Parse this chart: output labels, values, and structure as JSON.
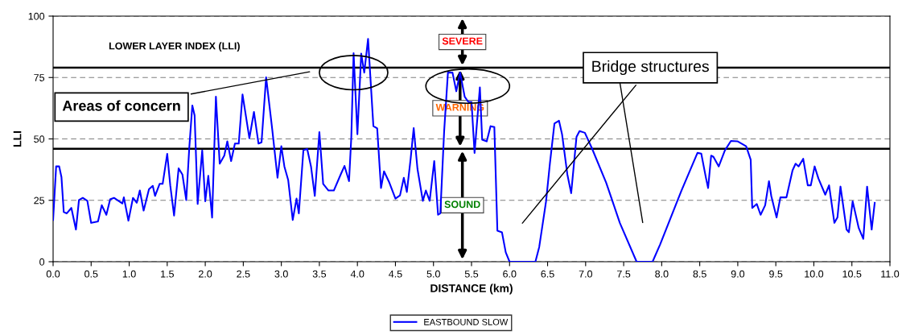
{
  "chart_data": {
    "type": "line",
    "xlabel": "DISTANCE (km)",
    "ylabel": "LLI",
    "xlim": [
      0,
      11
    ],
    "xticks": [
      {
        "value": 0,
        "label": "0.0"
      },
      {
        "value": 0.5,
        "label": "0.5"
      },
      {
        "value": 1,
        "label": "1.0"
      },
      {
        "value": 1.5,
        "label": "1.5"
      },
      {
        "value": 2,
        "label": "2.0"
      },
      {
        "value": 2.5,
        "label": "2.5"
      },
      {
        "value": 3,
        "label": "3.0"
      },
      {
        "value": 3.5,
        "label": "3.5"
      },
      {
        "value": 4,
        "label": "4.0"
      },
      {
        "value": 4.5,
        "label": "4.5"
      },
      {
        "value": 5,
        "label": "5.0"
      },
      {
        "value": 5.5,
        "label": "5.5"
      },
      {
        "value": 6,
        "label": "6.0"
      },
      {
        "value": 6.5,
        "label": "6.5"
      },
      {
        "value": 7,
        "label": "7.0"
      },
      {
        "value": 7.5,
        "label": "7.5"
      },
      {
        "value": 8,
        "label": "8.0"
      },
      {
        "value": 8.5,
        "label": "8.5"
      },
      {
        "value": 9,
        "label": "9.0"
      },
      {
        "value": 9.5,
        "label": "9.5"
      },
      {
        "value": 10,
        "label": "10.0"
      },
      {
        "value": 10.5,
        "label": "10.5"
      },
      {
        "value": 11,
        "label": "11.0"
      }
    ],
    "ylim": [
      0,
      100
    ],
    "yticks": [
      0,
      25,
      50,
      75,
      100
    ],
    "grid": "y",
    "legend": "bottom",
    "line_style": "solid",
    "marker": "none",
    "series": [
      {
        "name": "EASTBOUND SLOW",
        "color": "#0000ff",
        "x": [
          0.0,
          0.04,
          0.08,
          0.11,
          0.14,
          0.18,
          0.24,
          0.3,
          0.34,
          0.39,
          0.45,
          0.5,
          0.59,
          0.64,
          0.7,
          0.75,
          0.8,
          0.91,
          0.93,
          0.99,
          1.05,
          1.1,
          1.14,
          1.19,
          1.26,
          1.31,
          1.34,
          1.4,
          1.44,
          1.5,
          1.54,
          1.59,
          1.65,
          1.7,
          1.75,
          1.79,
          1.83,
          1.86,
          1.9,
          1.96,
          2.0,
          2.04,
          2.09,
          2.14,
          2.19,
          2.25,
          2.29,
          2.34,
          2.39,
          2.44,
          2.49,
          2.58,
          2.64,
          2.7,
          2.74,
          2.8,
          2.88,
          2.95,
          3.0,
          3.04,
          3.09,
          3.15,
          3.2,
          3.23,
          3.29,
          3.34,
          3.39,
          3.44,
          3.5,
          3.55,
          3.62,
          3.69,
          3.78,
          3.83,
          3.89,
          3.92,
          3.95,
          4.0,
          4.05,
          4.09,
          4.14,
          4.21,
          4.26,
          4.31,
          4.35,
          4.42,
          4.5,
          4.56,
          4.61,
          4.65,
          4.7,
          4.74,
          4.79,
          4.86,
          4.9,
          4.95,
          5.01,
          5.06,
          5.09,
          5.14,
          5.19,
          5.25,
          5.3,
          5.35,
          5.41,
          5.46,
          5.5,
          5.54,
          5.61,
          5.64,
          5.7,
          5.75,
          5.8,
          5.84,
          5.9,
          5.95,
          6.0,
          6.34,
          6.39,
          6.48,
          6.53,
          6.59,
          6.65,
          6.69,
          6.76,
          6.81,
          6.85,
          6.88,
          6.92,
          6.99,
          7.08,
          7.27,
          7.45,
          7.67,
          7.88,
          7.98,
          8.26,
          8.47,
          8.52,
          8.58,
          8.61,
          8.65,
          8.68,
          8.75,
          8.83,
          8.91,
          9.0,
          9.11,
          9.17,
          9.19,
          9.25,
          9.3,
          9.36,
          9.41,
          9.44,
          9.51,
          9.56,
          9.64,
          9.72,
          9.76,
          9.8,
          9.86,
          9.92,
          9.96,
          10.01,
          10.06,
          10.15,
          10.2,
          10.27,
          10.31,
          10.35,
          10.43,
          10.46,
          10.51,
          10.59,
          10.65,
          10.7,
          10.76,
          10.8
        ],
        "values": [
          17,
          38.8,
          38.8,
          34.4,
          20.2,
          19.7,
          21.9,
          13.1,
          25.1,
          26,
          24.8,
          15.8,
          16.4,
          23,
          19.1,
          25.4,
          26,
          23.7,
          26.2,
          16.7,
          26,
          24,
          29,
          20.8,
          29.5,
          30.9,
          26.8,
          31.7,
          31.7,
          43.9,
          31.1,
          18.8,
          38,
          35.5,
          25.1,
          46.4,
          63.6,
          59.6,
          23.5,
          45.3,
          24.6,
          35,
          18,
          67.2,
          39.9,
          43.2,
          49,
          41,
          48.1,
          48.1,
          68.1,
          50.3,
          61,
          48.1,
          48.6,
          75.1,
          54,
          34.2,
          47,
          38.8,
          33.3,
          17,
          25.7,
          19.7,
          45.4,
          45.9,
          38.8,
          26.8,
          52.8,
          31.7,
          29,
          29,
          35.5,
          39,
          32.8,
          50.8,
          84.9,
          51.9,
          84.7,
          77,
          90.7,
          55.2,
          54.3,
          30,
          36.8,
          32.2,
          25.7,
          27,
          34.2,
          28.4,
          42,
          54.4,
          37.7,
          24.8,
          29,
          24.8,
          41,
          19.1,
          19.7,
          53,
          77,
          77,
          69.4,
          77,
          67.2,
          65,
          65,
          44.3,
          71,
          49.7,
          49,
          55.2,
          54.8,
          12.6,
          12,
          3.8,
          0,
          0,
          6,
          24.6,
          39.9,
          56.3,
          57.4,
          51.9,
          35.5,
          27.9,
          41,
          50.8,
          53.2,
          52.5,
          46.4,
          32.2,
          15.8,
          0,
          0,
          7.1,
          29,
          44.3,
          44,
          34.4,
          30,
          43.2,
          42.7,
          38.8,
          45.3,
          49.2,
          49,
          47,
          41.5,
          21.9,
          23.5,
          19.1,
          23,
          32.8,
          26.8,
          18,
          26.2,
          26.2,
          37.2,
          39.9,
          38.8,
          41.9,
          31.1,
          31.1,
          38.8,
          33.9,
          27.3,
          31.1,
          15.8,
          18,
          30.6,
          13.1,
          12,
          24.6,
          13.7,
          9.3,
          30.6,
          13.1,
          24
        ]
      }
    ],
    "ref_lines": [
      {
        "axis": "y",
        "value": 79,
        "color": "#000000",
        "line_style": "solid"
      },
      {
        "axis": "y",
        "value": 46,
        "color": "#000000",
        "line_style": "solid"
      }
    ],
    "annotations": [
      "LOWER LAYER INDEX (LLI)",
      "Areas of concern",
      "Bridge structures",
      "SEVERE",
      "WARNING",
      "SOUND"
    ]
  }
}
